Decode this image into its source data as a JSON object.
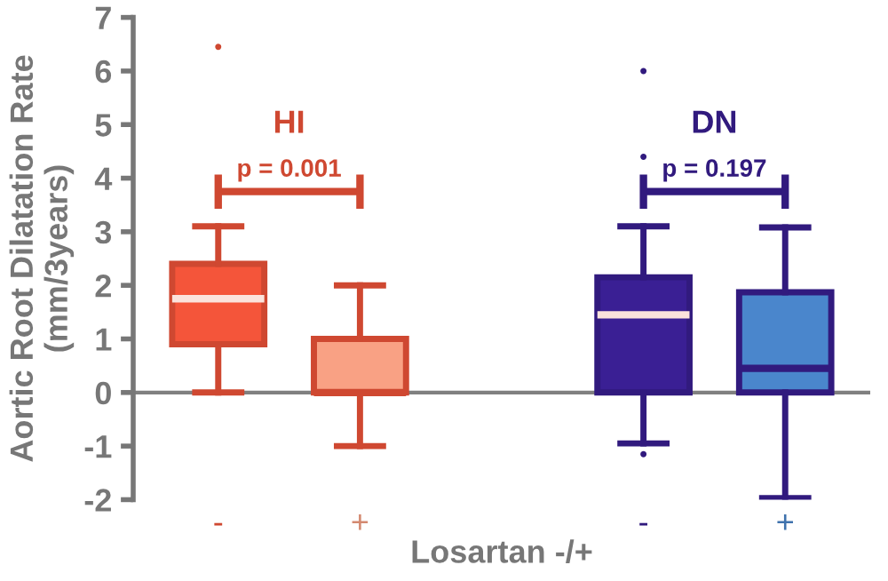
{
  "chart_data": {
    "type": "box",
    "ylabel": "Aortic Root Dilatation Rate\n(mm/3years)",
    "xlabel": "Losartan -/+",
    "categories": [
      "-",
      "+",
      null,
      "-",
      "+"
    ],
    "colors": [
      "#f4553a",
      "#f9a184",
      null,
      "#3a1f94",
      "#4a86cc"
    ],
    "boxes": [
      {
        "low": 0,
        "q1": 0.9,
        "median": 1.75,
        "q3": 2.4,
        "high": 3.1,
        "outliers": [
          6.45
        ]
      },
      {
        "low": -1.0,
        "q1": 0,
        "median": 0,
        "q3": 1.0,
        "high": 2.0
      },
      null,
      {
        "low": -0.95,
        "q1": 0,
        "median": 1.45,
        "q3": 2.15,
        "high": 3.1,
        "outliers": [
          6.0,
          4.4,
          -1.15
        ]
      },
      {
        "low": -1.97,
        "q1": 0,
        "median": 0.45,
        "q3": 1.87,
        "high": 3.08
      }
    ],
    "annotations": [
      "HI",
      "p = 0.001",
      "DN",
      "p = 0.197"
    ],
    "ref_lines": [
      {
        "axis": "y",
        "value": 0,
        "color": "#808080"
      }
    ],
    "ylim": [
      -2,
      7
    ],
    "yticks": [
      -2,
      -1,
      0,
      1,
      2,
      3,
      4,
      5,
      6,
      7
    ],
    "grid": false
  }
}
